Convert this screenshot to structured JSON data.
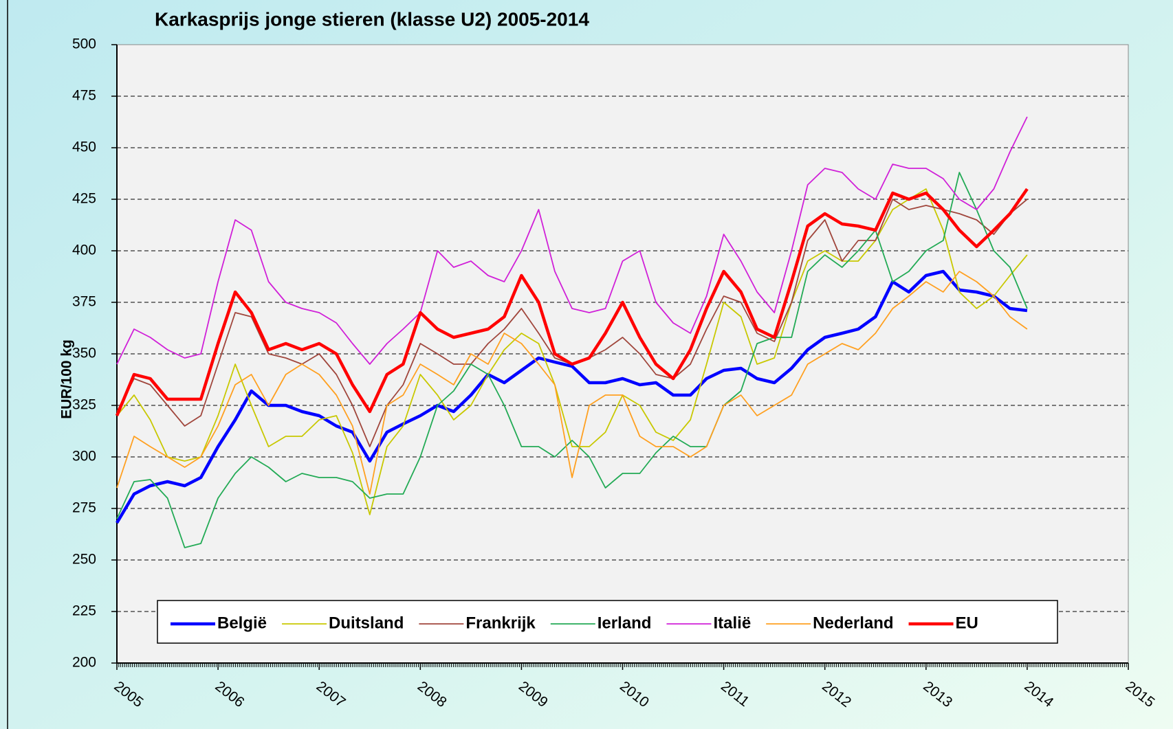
{
  "chart_data": {
    "type": "line",
    "title": "Karkasprijs jonge stieren (klasse U2)  2005-2014",
    "y_label": "EUR/100 kg",
    "xlim": [
      2005,
      2015
    ],
    "xticks": [
      2005,
      2006,
      2007,
      2008,
      2009,
      2010,
      2011,
      2012,
      2013,
      2014,
      2015
    ],
    "ylim": [
      200,
      500
    ],
    "yticks": [
      200,
      225,
      250,
      275,
      300,
      325,
      350,
      375,
      400,
      425,
      450,
      475,
      500
    ],
    "grid": true,
    "legend": "bottom",
    "x": [
      2005,
      2005.17,
      2005.33,
      2005.5,
      2005.67,
      2005.83,
      2006,
      2006.17,
      2006.33,
      2006.5,
      2006.67,
      2006.83,
      2007,
      2007.17,
      2007.33,
      2007.5,
      2007.67,
      2007.83,
      2008,
      2008.17,
      2008.33,
      2008.5,
      2008.67,
      2008.83,
      2009,
      2009.17,
      2009.33,
      2009.5,
      2009.67,
      2009.83,
      2010,
      2010.17,
      2010.33,
      2010.5,
      2010.67,
      2010.83,
      2011,
      2011.17,
      2011.33,
      2011.5,
      2011.67,
      2011.83,
      2012,
      2012.17,
      2012.33,
      2012.5,
      2012.67,
      2012.83,
      2013,
      2013.17,
      2013.33,
      2013.5,
      2013.67,
      2013.83,
      2014
    ],
    "series": [
      {
        "name": "België",
        "color": "#0000ff",
        "line_width": 4.5,
        "values": [
          268,
          282,
          286,
          288,
          286,
          290,
          305,
          318,
          332,
          325,
          325,
          322,
          320,
          315,
          312,
          298,
          312,
          316,
          320,
          325,
          322,
          330,
          340,
          336,
          342,
          348,
          346,
          344,
          336,
          336,
          338,
          335,
          336,
          330,
          330,
          338,
          342,
          343,
          338,
          336,
          343,
          352,
          358,
          360,
          362,
          368,
          385,
          380,
          388,
          390,
          381,
          380,
          378,
          372,
          371
        ]
      },
      {
        "name": "Duitsland",
        "color": "#c8c800",
        "line_width": 1.8,
        "values": [
          320,
          330,
          318,
          300,
          298,
          300,
          320,
          345,
          325,
          305,
          310,
          310,
          318,
          320,
          302,
          272,
          305,
          315,
          340,
          330,
          318,
          325,
          340,
          352,
          360,
          355,
          335,
          305,
          305,
          312,
          330,
          325,
          312,
          308,
          318,
          345,
          375,
          368,
          345,
          348,
          375,
          395,
          400,
          395,
          395,
          405,
          420,
          425,
          430,
          410,
          380,
          372,
          378,
          388,
          398
        ]
      },
      {
        "name": "Frankrijk",
        "color": "#a0463c",
        "line_width": 1.8,
        "values": [
          322,
          338,
          335,
          325,
          315,
          320,
          345,
          370,
          368,
          350,
          348,
          345,
          350,
          340,
          325,
          305,
          325,
          335,
          355,
          350,
          345,
          345,
          355,
          362,
          372,
          360,
          348,
          345,
          348,
          352,
          358,
          350,
          340,
          338,
          345,
          362,
          378,
          375,
          360,
          356,
          375,
          405,
          415,
          395,
          405,
          405,
          425,
          420,
          422,
          420,
          418,
          415,
          408,
          418,
          425
        ]
      },
      {
        "name": "Ierland",
        "color": "#22aa55",
        "line_width": 1.8,
        "values": [
          270,
          288,
          289,
          280,
          256,
          258,
          280,
          292,
          300,
          295,
          288,
          292,
          290,
          290,
          288,
          280,
          282,
          282,
          300,
          325,
          332,
          345,
          340,
          325,
          305,
          305,
          300,
          308,
          300,
          285,
          292,
          292,
          302,
          310,
          305,
          305,
          325,
          332,
          355,
          358,
          358,
          390,
          398,
          392,
          400,
          410,
          385,
          390,
          400,
          405,
          438,
          420,
          400,
          392,
          372
        ]
      },
      {
        "name": "Italië",
        "color": "#d020d8",
        "line_width": 1.8,
        "values": [
          345,
          362,
          358,
          352,
          348,
          350,
          385,
          415,
          410,
          385,
          375,
          372,
          370,
          365,
          355,
          345,
          355,
          362,
          370,
          400,
          392,
          395,
          388,
          385,
          400,
          420,
          390,
          372,
          370,
          372,
          395,
          400,
          375,
          365,
          360,
          378,
          408,
          395,
          380,
          370,
          400,
          432,
          440,
          438,
          430,
          425,
          442,
          440,
          440,
          435,
          425,
          420,
          430,
          448,
          465
        ]
      },
      {
        "name": "Nederland",
        "color": "#ffa020",
        "line_width": 1.8,
        "values": [
          285,
          310,
          305,
          300,
          295,
          300,
          315,
          335,
          340,
          325,
          340,
          345,
          340,
          330,
          315,
          282,
          325,
          330,
          345,
          340,
          335,
          350,
          345,
          360,
          355,
          345,
          335,
          290,
          325,
          330,
          330,
          310,
          305,
          305,
          300,
          305,
          325,
          330,
          320,
          325,
          330,
          345,
          350,
          355,
          352,
          360,
          372,
          378,
          385,
          380,
          390,
          385,
          378,
          368,
          362
        ]
      },
      {
        "name": "EU",
        "color": "#ff0000",
        "line_width": 4.5,
        "values": [
          320,
          340,
          338,
          328,
          328,
          328,
          355,
          380,
          370,
          352,
          355,
          352,
          355,
          350,
          335,
          322,
          340,
          345,
          370,
          362,
          358,
          360,
          362,
          368,
          388,
          375,
          350,
          345,
          348,
          360,
          375,
          358,
          345,
          338,
          352,
          372,
          390,
          380,
          362,
          358,
          385,
          412,
          418,
          413,
          412,
          410,
          428,
          425,
          428,
          420,
          410,
          402,
          410,
          418,
          430
        ]
      }
    ]
  }
}
